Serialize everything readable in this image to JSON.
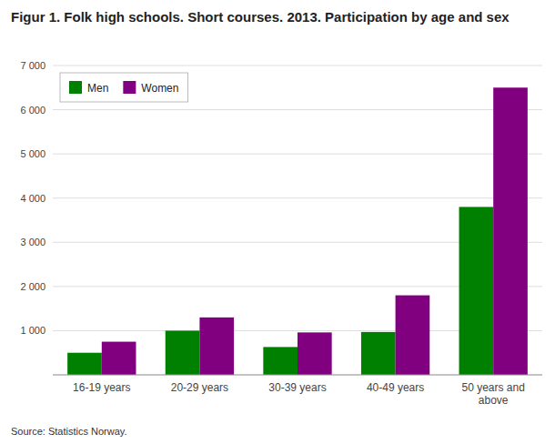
{
  "chart_data": {
    "type": "bar",
    "title": "Figur 1. Folk high schools. Short courses. 2013. Participation by age and sex",
    "source": "Source: Statistics Norway.",
    "categories": [
      "16-19 years",
      "20-29 years",
      "30-39 years",
      "40-49 years",
      "50 years and above"
    ],
    "series": [
      {
        "name": "Men",
        "color": "#008000",
        "values": [
          500,
          1000,
          630,
          970,
          3800
        ]
      },
      {
        "name": "Women",
        "color": "#800080",
        "values": [
          750,
          1300,
          960,
          1800,
          6500
        ]
      }
    ],
    "ylim": [
      0,
      7000
    ],
    "yticks": [
      {
        "value": 0,
        "label": null
      },
      {
        "value": 1000,
        "label": "1 000"
      },
      {
        "value": 2000,
        "label": "2 000"
      },
      {
        "value": 3000,
        "label": "3 000"
      },
      {
        "value": 4000,
        "label": "4 000"
      },
      {
        "value": 5000,
        "label": "5 000"
      },
      {
        "value": 6000,
        "label": "6 000"
      },
      {
        "value": 7000,
        "label": "7 000"
      }
    ],
    "grid": true,
    "legend": "upper left"
  }
}
